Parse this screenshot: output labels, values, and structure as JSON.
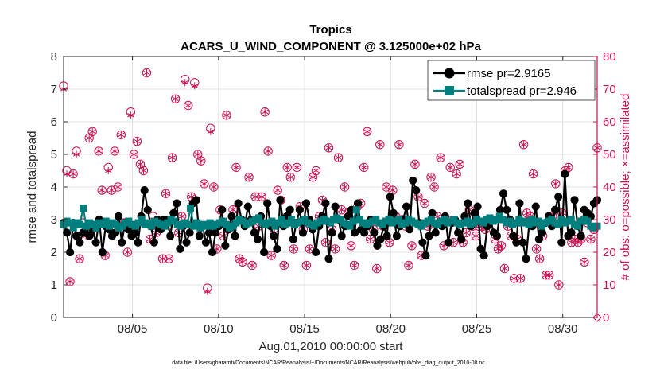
{
  "chart_data": {
    "type": "line",
    "title": "Tropics",
    "subtitle": "ACARS_U_WIND_COMPONENT @ 3.125000e+02 hPa",
    "xlabel": "Aug.01,2010 00:00:00 start",
    "ylabel": "rmse and totalspread",
    "ylabel_right": "# of obs: o=possible; ×=assimilated",
    "footnote": "data file: /Users/gharamti/Documents/NCAR/Reanalysis/~/Documents/NCAR/Reanalysis/webpub/obs_diag_output_2010-08.nc",
    "xlim": [
      1,
      32
    ],
    "ylim": [
      0,
      8
    ],
    "ylim_right": [
      0,
      80
    ],
    "x_ticks": [
      5,
      10,
      15,
      20,
      25,
      30
    ],
    "x_tick_labels": [
      "08/05",
      "08/10",
      "08/15",
      "08/20",
      "08/25",
      "08/30"
    ],
    "y_ticks": [
      0,
      1,
      2,
      3,
      4,
      5,
      6,
      7,
      8
    ],
    "y_ticks_right": [
      0,
      10,
      20,
      30,
      40,
      50,
      60,
      70,
      80
    ],
    "grid": true,
    "legend_position": "top-right",
    "colors": {
      "rmse": "#000000",
      "spread": "#007f7f",
      "obs": "#c8104e",
      "axis": "#262626",
      "grid": "#e0e0e0"
    },
    "series": [
      {
        "name": "rmse pr=2.9165",
        "axis": "left",
        "values": [
          2.9,
          2.6,
          2.0,
          2.9,
          2.5,
          2.3,
          2.6,
          2.8,
          2.5,
          2.7,
          2.3,
          3.0,
          2.0,
          2.8,
          2.7,
          2.5,
          2.6,
          3.1,
          2.3,
          2.9,
          2.7,
          2.5,
          2.6,
          2.3,
          3.1,
          3.9,
          3.3,
          2.8,
          2.3,
          3.0,
          2.7,
          3.0,
          3.0,
          2.5,
          3.2,
          3.5,
          2.1,
          2.8,
          2.3,
          2.6,
          3.5,
          3.6,
          2.5,
          2.8,
          2.3,
          2.6,
          2.0,
          2.6,
          2.8,
          3.3,
          2.2,
          2.7,
          3.1,
          2.5,
          3.5,
          3.0,
          2.8,
          3.4,
          3.0,
          2.6,
          2.4,
          3.1,
          2.0,
          3.5,
          2.8,
          2.5,
          2.1,
          3.6,
          2.8,
          3.1,
          3.3,
          2.4,
          2.9,
          3.3,
          2.6,
          3.5,
          3.0,
          2.7,
          2.0,
          2.8,
          3.1,
          3.5,
          1.8,
          2.6,
          3.4,
          3.0,
          2.5,
          2.8,
          3.1,
          3.3,
          2.6,
          3.5,
          2.7,
          2.6,
          2.8,
          3.0,
          2.6,
          2.2,
          2.4,
          2.8,
          2.5,
          3.7,
          3.2,
          2.5,
          2.8,
          3.0,
          3.4,
          2.7,
          4.2,
          3.9,
          2.9,
          2.3,
          1.9,
          2.5,
          3.2,
          2.6,
          2.9,
          2.8,
          3.1,
          2.3,
          2.9,
          3.0,
          2.6,
          2.4,
          3.1,
          3.5,
          2.8,
          3.2,
          3.4,
          2.1,
          1.9,
          2.8,
          3.0,
          2.6,
          2.5,
          3.3,
          3.8,
          3.3,
          3.0,
          2.5,
          2.3,
          3.5,
          2.3,
          1.8,
          2.9,
          2.8,
          3.4,
          2.4,
          2.6,
          2.9,
          3.1,
          2.8,
          3.3,
          3.7,
          2.3,
          4.4,
          2.5,
          2.6,
          3.6,
          2.8,
          2.5,
          3.3,
          3.2,
          3.1,
          3.5,
          3.6
        ],
        "visible_markers": true
      },
      {
        "name": "totalspread pr=2.946",
        "axis": "left",
        "values": [
          2.85,
          2.95,
          2.9,
          2.75,
          2.9,
          2.85,
          3.35,
          2.8,
          2.9,
          2.85,
          2.75,
          2.9,
          2.85,
          2.95,
          2.8,
          2.9,
          2.85,
          2.75,
          2.8,
          2.9,
          2.95,
          2.85,
          2.8,
          2.9,
          3.0,
          2.85,
          2.9,
          2.8,
          2.95,
          2.9,
          2.85,
          2.8,
          2.9,
          3.0,
          2.95,
          2.85,
          2.8,
          2.9,
          2.85,
          3.35,
          2.8,
          2.9,
          2.75,
          2.85,
          2.8,
          2.9,
          2.8,
          2.85,
          2.9,
          2.95,
          2.85,
          2.75,
          2.8,
          2.9,
          3.0,
          2.95,
          2.85,
          2.9,
          2.95,
          3.0,
          3.05,
          2.9,
          2.85,
          2.9,
          2.95,
          2.8,
          2.9,
          3.0,
          2.85,
          2.9,
          3.0,
          2.85,
          2.9,
          2.95,
          3.0,
          2.9,
          2.85,
          2.8,
          2.9,
          2.95,
          3.0,
          2.95,
          2.9,
          3.0,
          3.05,
          3.0,
          2.9,
          2.85,
          2.8,
          2.95,
          3.3,
          3.0,
          2.9,
          2.85,
          2.9,
          2.95,
          3.0,
          2.9,
          2.85,
          2.95,
          3.0,
          2.9,
          2.95,
          3.0,
          2.85,
          2.9,
          3.0,
          2.95,
          2.9,
          2.85,
          2.8,
          2.9,
          2.95,
          3.0,
          2.9,
          2.85,
          2.95,
          3.0,
          2.9,
          2.95,
          3.0,
          2.9,
          2.85,
          2.9,
          2.95,
          2.85,
          2.9,
          3.0,
          2.95,
          2.9,
          3.0,
          3.05,
          2.95,
          3.0,
          3.1,
          3.0,
          2.9,
          2.95,
          2.85,
          2.9,
          3.0,
          2.9,
          2.95,
          2.85,
          3.0,
          2.9,
          2.95,
          2.8,
          2.9,
          2.95,
          3.0,
          2.9,
          2.85,
          3.0,
          2.9,
          2.95,
          3.0,
          2.85,
          2.8,
          2.95,
          3.0,
          2.95,
          2.8,
          2.75,
          2.8
        ],
        "visible_markers": true
      },
      {
        "name": "possible obs",
        "axis": "right",
        "marker": "circle",
        "values": [
          71,
          45,
          11,
          44,
          51,
          18,
          29,
          26,
          55,
          57,
          28,
          51,
          39,
          19,
          46,
          39,
          51,
          40,
          56,
          29,
          20,
          63,
          50,
          54,
          47,
          45,
          75,
          24,
          31,
          26,
          28,
          18,
          38,
          18,
          49,
          67,
          26,
          31,
          73,
          65,
          37,
          72,
          50,
          48,
          41,
          9,
          58,
          40,
          21,
          33,
          25,
          62,
          28,
          33,
          46,
          18,
          17,
          29,
          43,
          16,
          37,
          28,
          37,
          63,
          51,
          19,
          26,
          39,
          36,
          16,
          46,
          43,
          21,
          46,
          34,
          27,
          16,
          21,
          43,
          45,
          31,
          36,
          23,
          52,
          27,
          21,
          49,
          33,
          40,
          32,
          22,
          16,
          34,
          35,
          46,
          57,
          24,
          27,
          15,
          53,
          28,
          40,
          23,
          39,
          31,
          53,
          30,
          28,
          16,
          22,
          47,
          37,
          19,
          35,
          28,
          43,
          40,
          31,
          49,
          22,
          30,
          46,
          23,
          44,
          47,
          23,
          26,
          33,
          28,
          25,
          28,
          28,
          27,
          30,
          30,
          24,
          21,
          22,
          15,
          28,
          25,
          12,
          24,
          12,
          53,
          32,
          31,
          44,
          21,
          18,
          25,
          13,
          13,
          31,
          41,
          10,
          32,
          45,
          46,
          23,
          24,
          23,
          24,
          17,
          29,
          24,
          27,
          52
        ]
      },
      {
        "name": "assimilated obs",
        "axis": "right",
        "marker": "asterisk",
        "values": [
          70,
          44,
          11,
          44,
          50,
          18,
          28,
          25,
          55,
          57,
          28,
          51,
          39,
          19,
          45,
          39,
          51,
          40,
          56,
          29,
          20,
          62,
          50,
          54,
          47,
          45,
          75,
          24,
          30,
          26,
          28,
          18,
          38,
          18,
          49,
          67,
          26,
          31,
          72,
          65,
          37,
          71,
          50,
          48,
          41,
          8,
          57,
          40,
          21,
          33,
          25,
          62,
          28,
          33,
          46,
          18,
          17,
          29,
          43,
          16,
          37,
          28,
          37,
          63,
          51,
          19,
          26,
          39,
          36,
          16,
          46,
          43,
          21,
          46,
          34,
          27,
          16,
          21,
          43,
          45,
          31,
          36,
          23,
          52,
          27,
          21,
          49,
          33,
          40,
          32,
          22,
          16,
          34,
          35,
          46,
          57,
          24,
          27,
          15,
          53,
          28,
          40,
          23,
          39,
          31,
          53,
          30,
          28,
          16,
          22,
          47,
          37,
          19,
          35,
          28,
          43,
          40,
          31,
          49,
          22,
          30,
          46,
          23,
          44,
          47,
          23,
          26,
          33,
          28,
          25,
          28,
          28,
          27,
          30,
          30,
          24,
          21,
          22,
          15,
          28,
          25,
          12,
          24,
          12,
          53,
          32,
          31,
          44,
          21,
          18,
          25,
          13,
          13,
          31,
          41,
          10,
          32,
          45,
          46,
          23,
          24,
          23,
          24,
          17,
          29,
          24,
          27,
          52
        ]
      }
    ],
    "legend": [
      {
        "label": "rmse pr=2.9165",
        "series": 0
      },
      {
        "label": "totalspread pr=2.946",
        "series": 1
      }
    ]
  }
}
